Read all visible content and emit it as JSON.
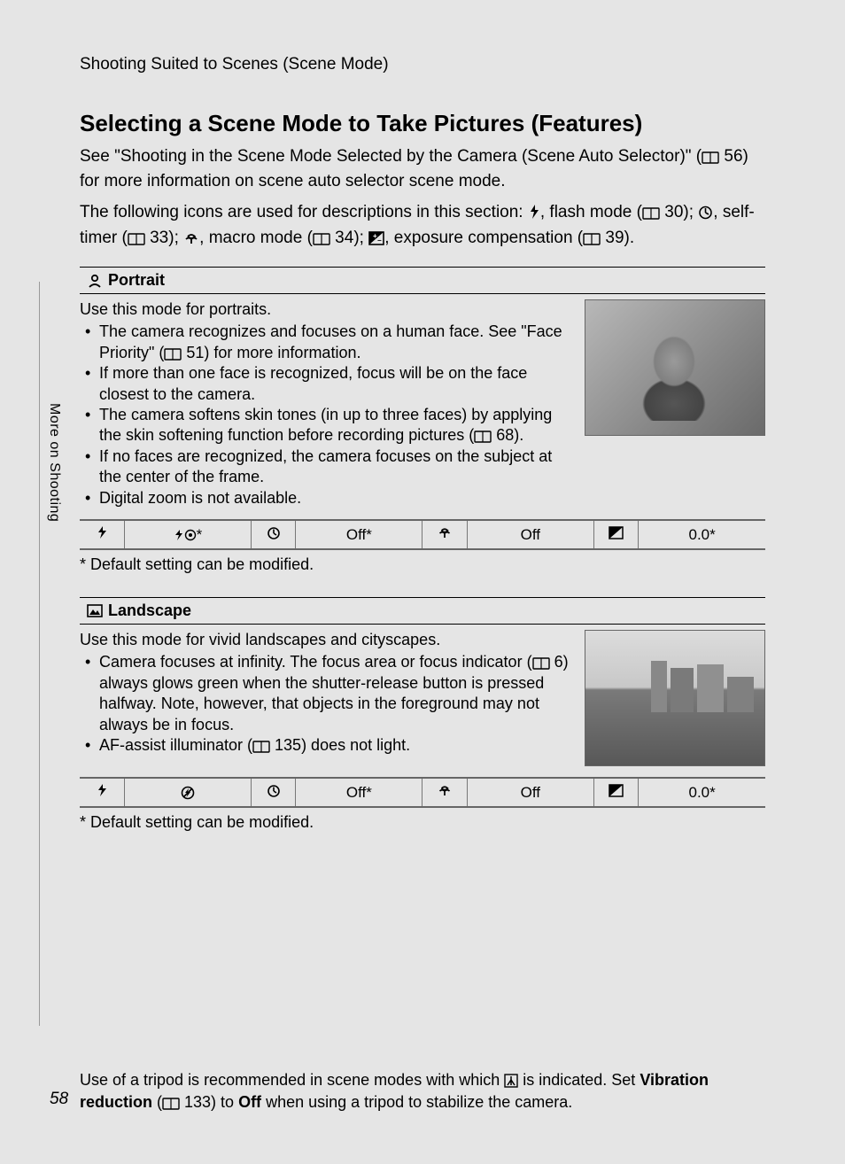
{
  "section_header": "Shooting Suited to Scenes (Scene Mode)",
  "title": "Selecting a Scene Mode to Take Pictures (Features)",
  "intro1_a": "See \"Shooting in the Scene Mode Selected by the Camera (Scene Auto Selector)\" (",
  "intro1_b": " 56) for more information on scene auto selector scene mode.",
  "intro2_a": "The following icons are used for descriptions in this section: ",
  "intro2_b": ", flash mode (",
  "intro2_c": " 30); ",
  "intro2_d": ", self-timer (",
  "intro2_e": " 33); ",
  "intro2_f": ", macro mode (",
  "intro2_g": " 34); ",
  "intro2_h": ", exposure compensation (",
  "intro2_i": " 39).",
  "portrait": {
    "label": "Portrait",
    "intro": "Use this mode for portraits.",
    "bullets": [
      "The camera recognizes and focuses on a human face. See \"Face Priority\" (📖 51) for more information.",
      "If more than one face is recognized, focus will be on the face closest to the camera.",
      "The camera softens skin tones (in up to three faces) by applying the skin softening function before recording pictures (📖 68).",
      "If no faces are recognized, the camera focuses on the subject at the center of the frame.",
      "Digital zoom is not available."
    ],
    "table": {
      "flash_val": "⚡◉*",
      "timer_val": "Off*",
      "macro_val": "Off",
      "ev_val": "0.0*"
    },
    "footnote": "*   Default setting can be modified."
  },
  "landscape": {
    "label": "Landscape",
    "intro": "Use this mode for vivid landscapes and cityscapes.",
    "bullets": [
      "Camera focuses at infinity. The focus area or focus indicator (📖 6) always glows green when the shutter-release button is pressed halfway. Note, however, that objects in the foreground may not always be in focus.",
      "AF-assist illuminator (📖 135) does not light."
    ],
    "table": {
      "flash_val": "⊘",
      "timer_val": "Off*",
      "macro_val": "Off",
      "ev_val": "0.0*"
    },
    "footnote": "*   Default setting can be modified."
  },
  "bottom_note_a": "Use of a tripod is recommended in scene modes with which ",
  "bottom_note_b": " is indicated. Set ",
  "bottom_note_c": "Vibration reduction",
  "bottom_note_d": " (",
  "bottom_note_e": " 133) to ",
  "bottom_note_f": "Off",
  "bottom_note_g": " when using a tripod to stabilize the camera.",
  "side_tab": "More on Shooting",
  "page_number": "58",
  "icons": {
    "book": "📖",
    "flash": "⚡",
    "timer": "◔",
    "macro": "❀",
    "ev": "⊞",
    "tripod": "⎍"
  }
}
